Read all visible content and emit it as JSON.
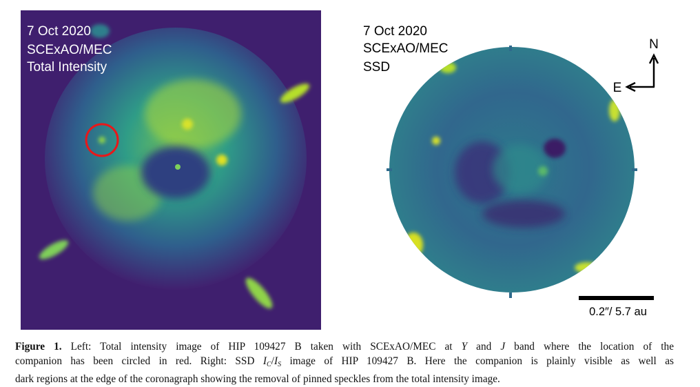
{
  "left_panel": {
    "labels": [
      "7 Oct 2020",
      "SCExAO/MEC",
      "Total Intensity"
    ]
  },
  "right_panel": {
    "labels": [
      "7 Oct 2020",
      "SCExAO/MEC",
      "SSD"
    ]
  },
  "compass": {
    "north": "N",
    "east": "E"
  },
  "scale_bar": {
    "label": "0.2″/ 5.7 au"
  },
  "caption": {
    "label": "Figure 1.",
    "lines": [
      [
        "Left: Total intensity image of HIP 109427 B taken with SCExAO/MEC at ",
        "Y",
        " and ",
        "J",
        " band where the location of the"
      ],
      [
        "companion has been circled in red. Right: SSD ",
        "I",
        "C",
        "/",
        "I",
        "S",
        " image of HIP 109427 B. Here the companion is plainly visible as well as"
      ],
      [
        "dark regions at the edge of the coronagraph showing the removal of pinned speckles from the total intensity image."
      ]
    ]
  }
}
